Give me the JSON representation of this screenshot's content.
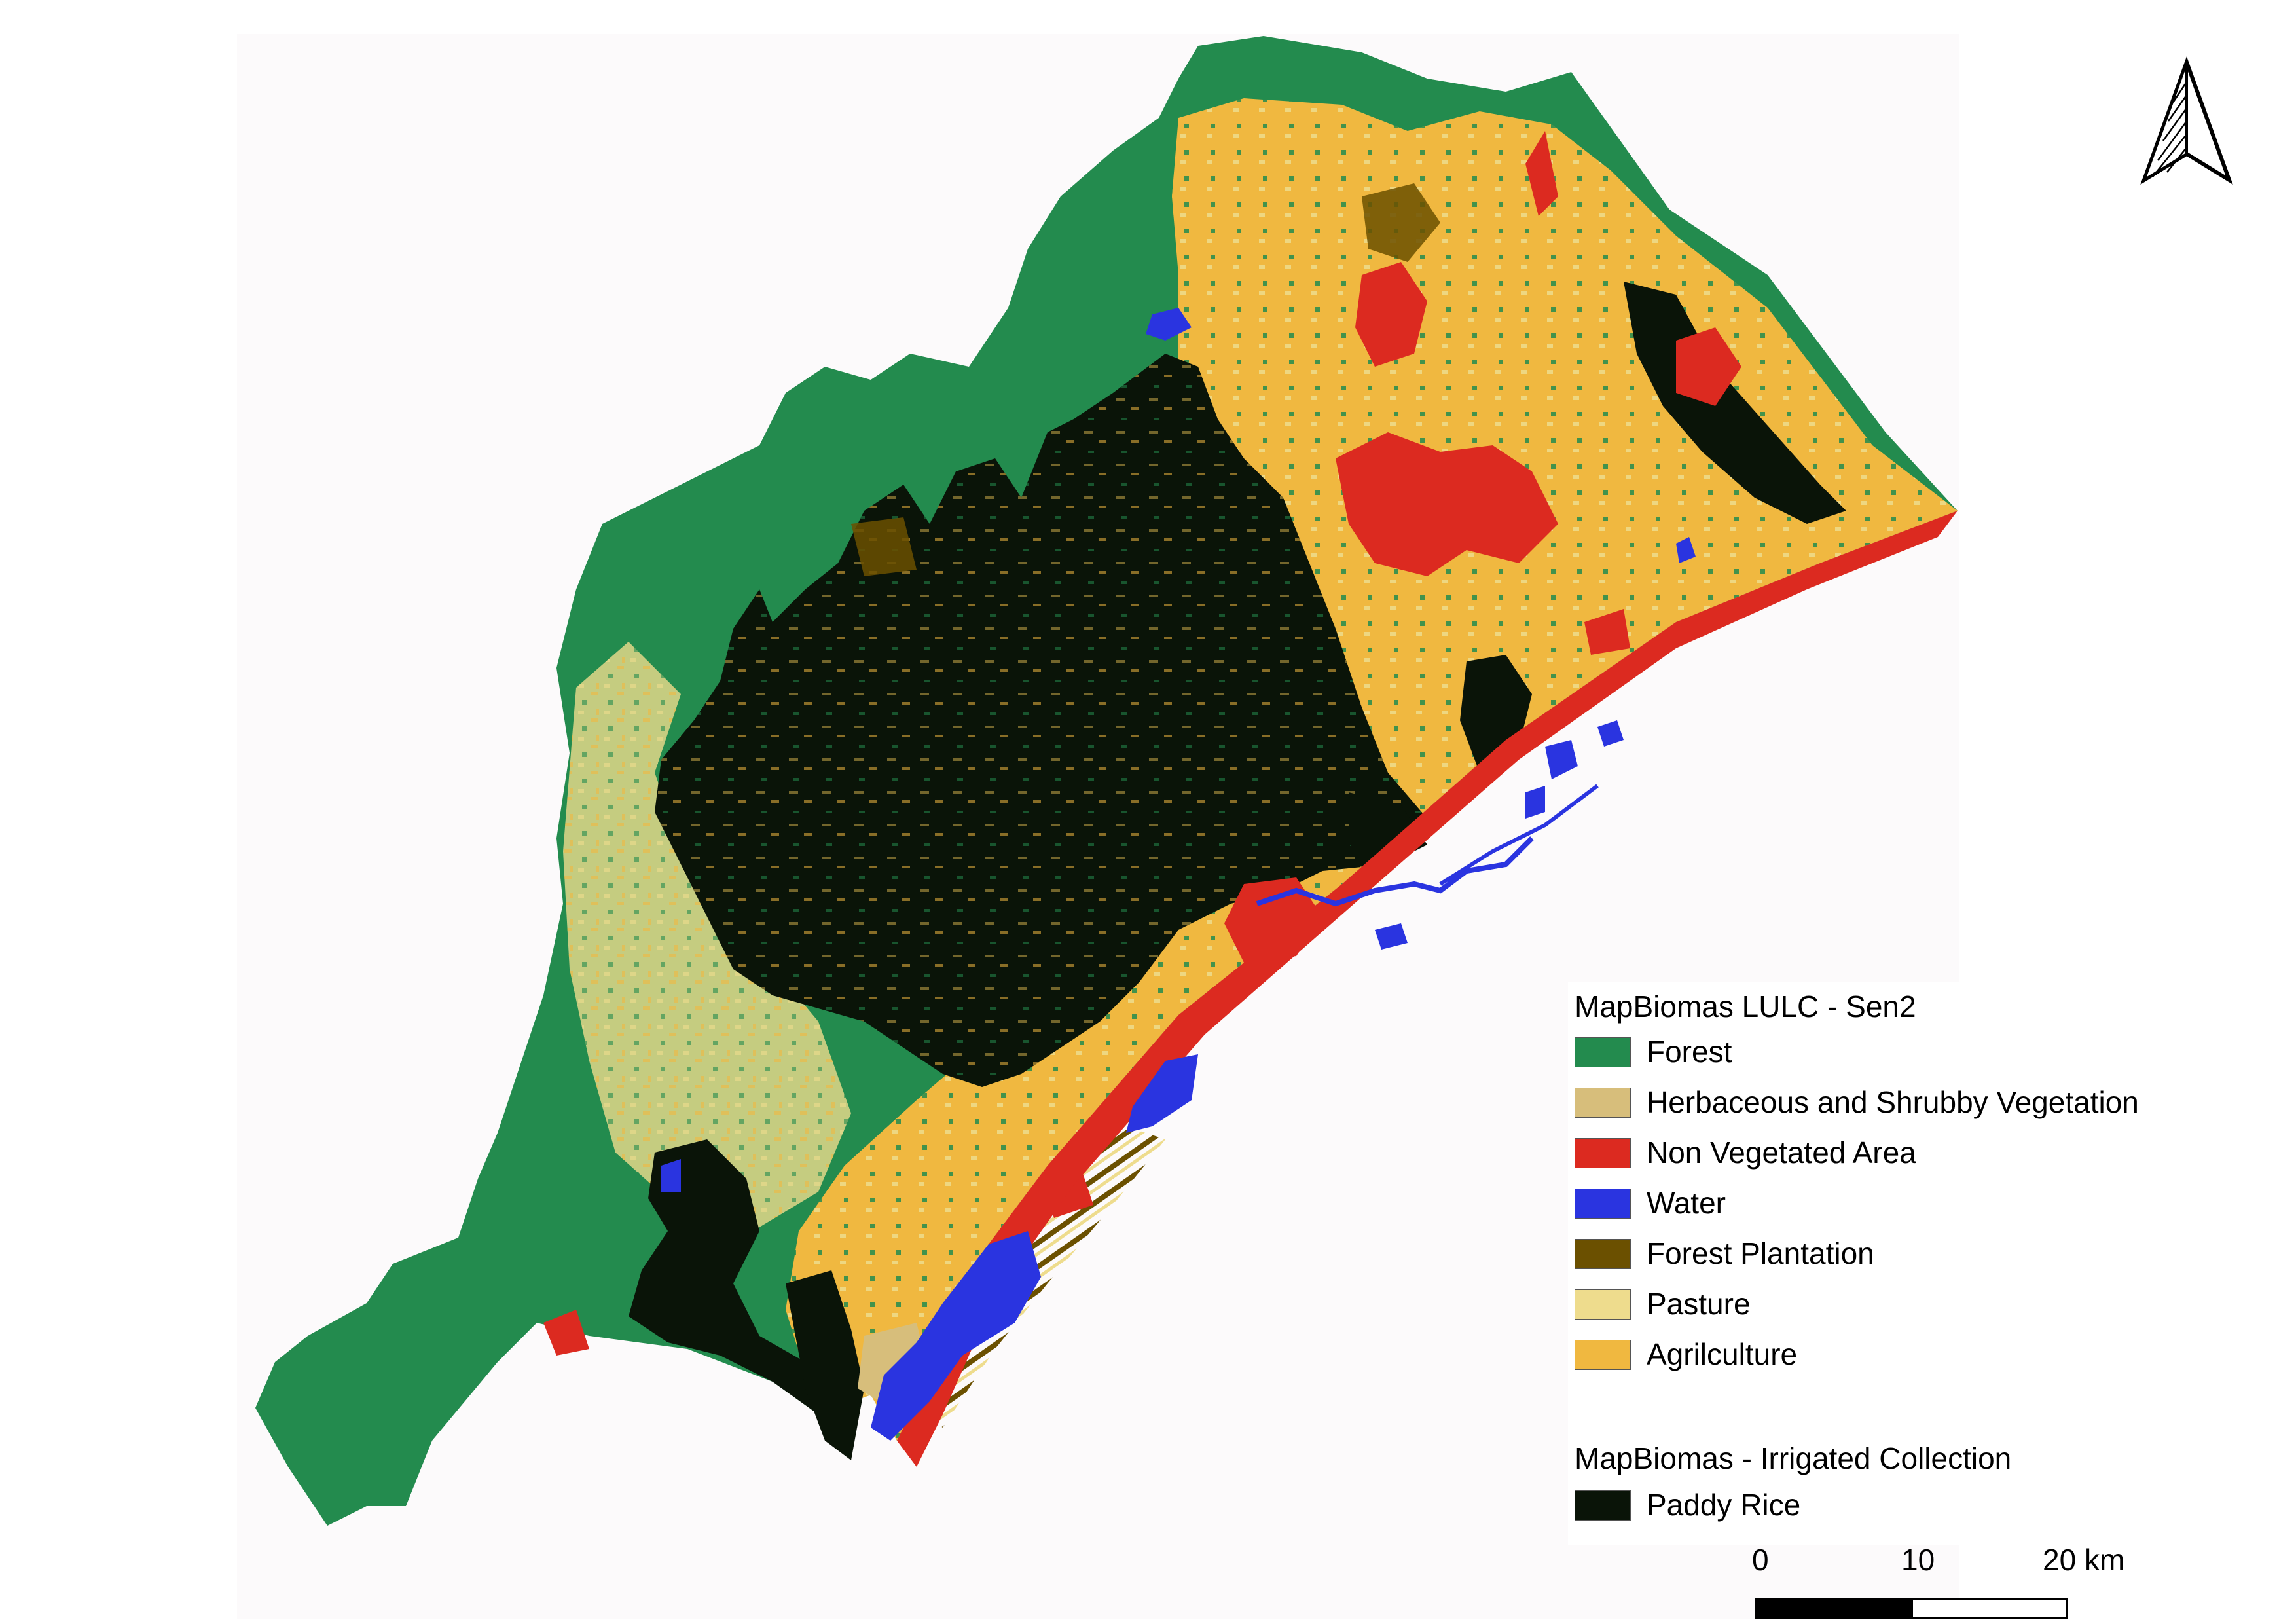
{
  "legend": {
    "lulc_title": "MapBiomas LULC - Sen2",
    "lulc_items": [
      {
        "label": "Forest",
        "color": "#238b4e"
      },
      {
        "label": "Herbaceous and Shrubby Vegetation",
        "color": "#d7be7b"
      },
      {
        "label": "Non Vegetated Area",
        "color": "#dc2a20"
      },
      {
        "label": "Water",
        "color": "#2a34e0"
      },
      {
        "label": "Forest Plantation",
        "color": "#6b5000"
      },
      {
        "label": "Pasture",
        "color": "#eedc8d"
      },
      {
        "label": "Agrilculture",
        "color": "#f0b840"
      }
    ],
    "irrigated_title": "MapBiomas - Irrigated Collection",
    "irrigated_items": [
      {
        "label": "Paddy Rice",
        "color": "#0a1408"
      }
    ]
  },
  "scale_bar": {
    "labels": [
      "0",
      "10",
      "20 km"
    ]
  },
  "map": {
    "north_arrow_icon": "north-arrow-icon"
  }
}
